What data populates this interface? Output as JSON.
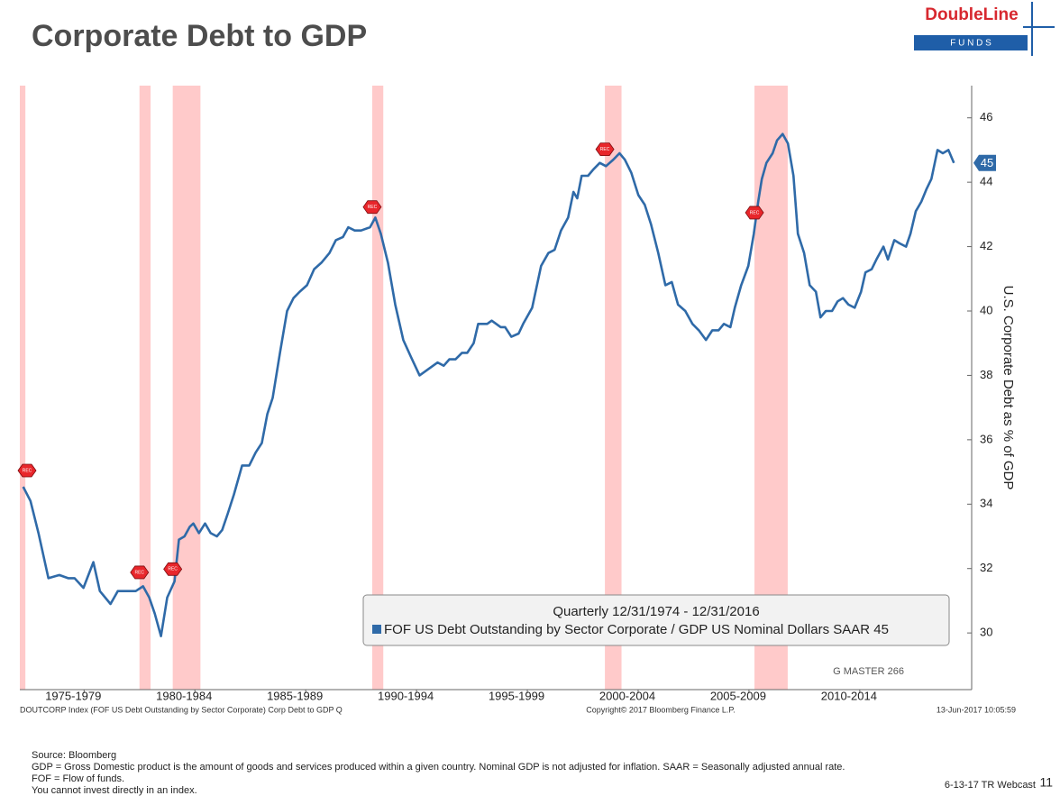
{
  "chart_data": {
    "type": "line",
    "title": "Corporate Debt to GDP",
    "y_label": "U.S. Corporate Debt as % of GDP",
    "legend_title": "Quarterly 12/31/1974 - 12/31/2016",
    "series": [
      {
        "name": "FOF US Debt Outstanding by Sector Corporate / GDP US Nominal Dollars SAAR 45",
        "color": "#2f6aa8",
        "values": [
          34.54,
          34.1,
          33.1,
          31.7,
          31.8,
          31.7,
          31.7,
          31.4,
          32.2,
          31.3,
          30.9,
          31.3,
          31.3,
          31.3,
          31.45,
          31.1,
          30.6,
          29.9,
          31.1,
          31.6,
          32.9,
          33.0,
          33.3,
          33.4,
          33.1,
          33.4,
          33.1,
          33.0,
          33.2,
          33.7,
          34.3,
          35.2,
          35.2,
          35.6,
          35.9,
          36.8,
          37.3,
          38.7,
          40.0,
          40.4,
          40.6,
          40.8,
          41.3,
          41.5,
          41.8,
          42.2,
          42.3,
          42.6,
          42.5,
          42.5,
          42.6,
          42.9,
          42.4,
          41.5,
          40.2,
          39.1,
          38.6,
          38.0,
          38.2,
          38.4,
          38.3,
          38.5,
          38.5,
          38.7,
          38.7,
          39.0,
          39.6,
          39.6,
          39.7,
          39.5,
          39.5,
          39.2,
          39.3,
          39.6,
          40.1,
          41.4,
          41.8,
          41.9,
          42.5,
          42.9,
          43.7,
          43.5,
          44.2,
          44.2,
          44.4,
          44.6,
          44.5,
          44.7,
          44.9,
          44.7,
          44.3,
          43.6,
          43.3,
          42.7,
          41.8,
          40.8,
          40.9,
          40.2,
          40.0,
          39.6,
          39.4,
          39.1,
          39.4,
          39.4,
          39.6,
          39.5,
          40.1,
          40.8,
          41.4,
          42.4,
          43.4,
          44.1,
          44.6,
          44.9,
          45.3,
          45.5,
          45.2,
          44.2,
          42.4,
          41.8,
          40.8,
          40.6,
          39.8,
          40.0,
          40.0,
          40.3,
          40.4,
          40.2,
          40.1,
          40.6,
          41.2,
          41.3,
          41.6,
          42.0,
          41.6,
          42.2,
          42.1,
          42.0,
          42.4,
          43.1,
          43.4,
          43.8,
          44.1,
          45.0,
          44.9,
          45.0,
          44.6
        ]
      }
    ],
    "x": [
      1974.75,
      1975.08,
      1975.44,
      1975.89,
      1976.38,
      1976.78,
      1977.07,
      1977.47,
      1977.92,
      1978.21,
      1978.69,
      1979.02,
      1979.42,
      1979.83,
      1980.16,
      1980.44,
      1980.69,
      1980.97,
      1981.25,
      1981.58,
      1981.78,
      1982.03,
      1982.27,
      1982.43,
      1982.68,
      1982.96,
      1983.21,
      1983.49,
      1983.73,
      1983.98,
      1984.26,
      1984.63,
      1984.95,
      1985.24,
      1985.52,
      1985.77,
      1986.01,
      1986.34,
      1986.66,
      1986.95,
      1987.23,
      1987.56,
      1987.88,
      1988.21,
      1988.57,
      1988.86,
      1989.18,
      1989.42,
      1989.71,
      1990.0,
      1990.4,
      1990.64,
      1990.89,
      1991.21,
      1991.54,
      1991.9,
      1992.23,
      1992.64,
      1993.04,
      1993.45,
      1993.73,
      1993.98,
      1994.26,
      1994.55,
      1994.79,
      1995.08,
      1995.28,
      1995.69,
      1995.89,
      1996.3,
      1996.5,
      1996.78,
      1997.11,
      1997.31,
      1997.72,
      1998.12,
      1998.45,
      1998.73,
      1999.02,
      1999.34,
      1999.58,
      1999.75,
      1999.95,
      2000.24,
      2000.48,
      2000.77,
      2001.05,
      2001.38,
      2001.66,
      2001.9,
      2002.19,
      2002.51,
      2002.8,
      2003.08,
      2003.41,
      2003.73,
      2004.02,
      2004.3,
      2004.63,
      2004.95,
      2005.24,
      2005.56,
      2005.85,
      2006.13,
      2006.37,
      2006.66,
      2006.86,
      2007.15,
      2007.47,
      2007.72,
      2007.92,
      2008.08,
      2008.29,
      2008.57,
      2008.77,
      2009.02,
      2009.26,
      2009.51,
      2009.71,
      2009.99,
      2010.24,
      2010.52,
      2010.73,
      2010.97,
      2011.25,
      2011.5,
      2011.74,
      2011.99,
      2012.27,
      2012.56,
      2012.76,
      2013.04,
      2013.25,
      2013.57,
      2013.77,
      2014.06,
      2014.3,
      2014.59,
      2014.79,
      2015.03,
      2015.28,
      2015.52,
      2015.73,
      2016.01,
      2016.25,
      2016.5,
      2016.75
    ],
    "xlim": [
      1974.6,
      2017.55
    ],
    "xticks": [
      {
        "value": 1977.5,
        "label": "1975-1979"
      },
      {
        "value": 1982.5,
        "label": "1980-1984"
      },
      {
        "value": 1987.5,
        "label": "1985-1989"
      },
      {
        "value": 1992.5,
        "label": "1990-1994"
      },
      {
        "value": 1997.5,
        "label": "1995-1999"
      },
      {
        "value": 2002.5,
        "label": "2000-2004"
      },
      {
        "value": 2007.5,
        "label": "2005-2009"
      },
      {
        "value": 2012.5,
        "label": "2010-2014"
      }
    ],
    "ylim": [
      28.24,
      47.0
    ],
    "yticks": [
      30,
      32,
      34,
      36,
      38,
      40,
      42,
      44,
      46
    ],
    "recessions": [
      [
        1974.6,
        1974.85
      ],
      [
        1980.0,
        1980.5
      ],
      [
        1981.5,
        1982.75
      ],
      [
        1990.5,
        1991.0
      ],
      [
        2001.0,
        2001.75
      ],
      [
        2007.75,
        2009.25
      ]
    ],
    "recession_label": "REC",
    "recession_color": "#ffc4c4",
    "last_value_label": "45",
    "watermark": "G MASTER 266",
    "index_line": "DOUTCORP Index (FOF US Debt Outstanding by Sector Corporate) Corp Debt to GDP  Q",
    "copyright": "Copyright© 2017 Bloomberg Finance L.P.",
    "timestamp": "13-Jun-2017 10:05:59"
  },
  "logo": {
    "name": "DoubleLine",
    "sub": "F U N D S"
  },
  "footnotes": [
    "Source: Bloomberg",
    "GDP = Gross Domestic product is the amount of goods and services produced within a given country.  Nominal GDP is not adjusted for inflation. SAAR = Seasonally adjusted annual rate.",
    "FOF = Flow of funds.",
    "You cannot invest directly in an index."
  ],
  "footer": {
    "event": "6-13-17 TR Webcast",
    "page": "11"
  }
}
